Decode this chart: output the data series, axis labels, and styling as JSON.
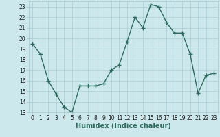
{
  "x": [
    0,
    1,
    2,
    3,
    4,
    5,
    6,
    7,
    8,
    9,
    10,
    11,
    12,
    13,
    14,
    15,
    16,
    17,
    18,
    19,
    20,
    21,
    22,
    23
  ],
  "y": [
    19.5,
    18.5,
    16.0,
    14.7,
    13.5,
    13.0,
    15.5,
    15.5,
    15.5,
    15.7,
    17.0,
    17.5,
    19.7,
    22.0,
    21.0,
    23.2,
    23.0,
    21.5,
    20.5,
    20.5,
    18.5,
    14.8,
    16.5,
    16.7
  ],
  "line_color": "#2d6b5e",
  "marker": "+",
  "marker_size": 4,
  "bg_color": "#cce8ec",
  "grid_color": "#aacdd4",
  "xlabel": "Humidex (Indice chaleur)",
  "xlim": [
    -0.5,
    23.5
  ],
  "ylim": [
    13,
    23.5
  ],
  "yticks": [
    13,
    14,
    15,
    16,
    17,
    18,
    19,
    20,
    21,
    22,
    23
  ],
  "xticks": [
    0,
    1,
    2,
    3,
    4,
    5,
    6,
    7,
    8,
    9,
    10,
    11,
    12,
    13,
    14,
    15,
    16,
    17,
    18,
    19,
    20,
    21,
    22,
    23
  ],
  "xtick_labels": [
    "0",
    "1",
    "2",
    "3",
    "4",
    "5",
    "6",
    "7",
    "8",
    "9",
    "10",
    "11",
    "12",
    "13",
    "14",
    "15",
    "16",
    "17",
    "18",
    "19",
    "20",
    "21",
    "22",
    "23"
  ],
  "ytick_labels": [
    "13",
    "14",
    "15",
    "16",
    "17",
    "18",
    "19",
    "20",
    "21",
    "22",
    "23"
  ],
  "xlabel_fontsize": 7,
  "tick_fontsize": 5.5,
  "line_width": 1.0
}
